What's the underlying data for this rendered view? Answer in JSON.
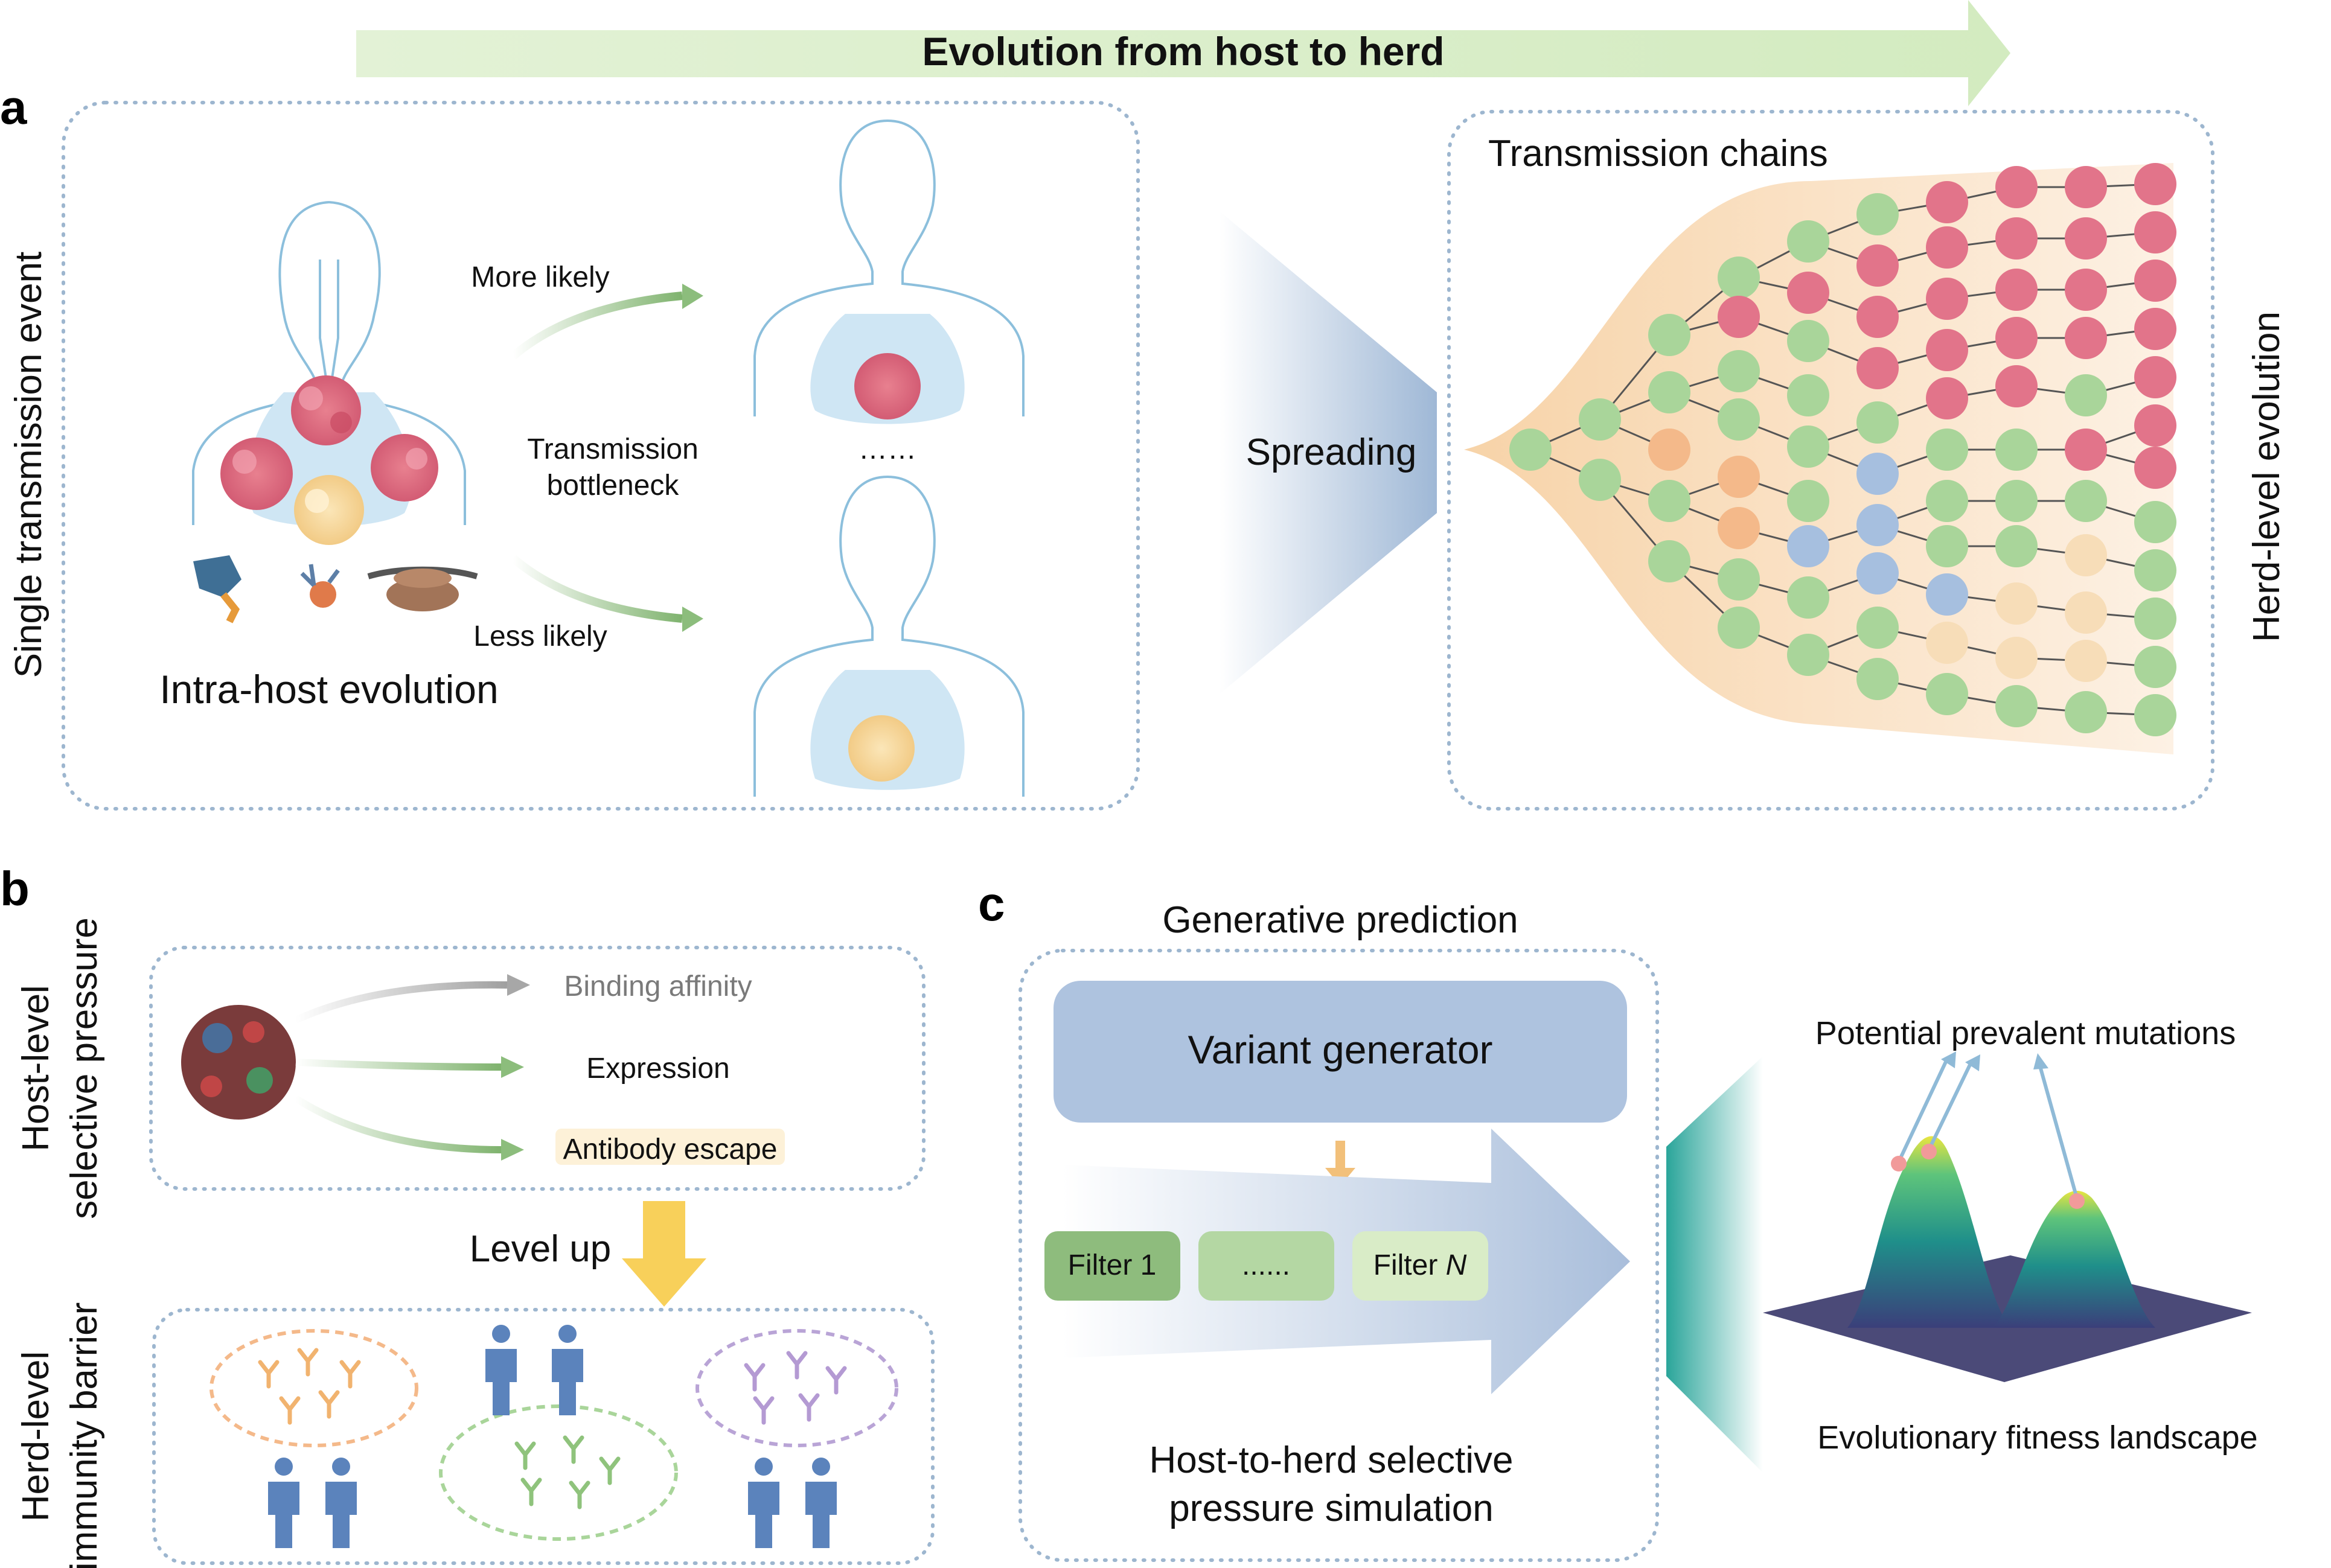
{
  "banner": {
    "title": "Evolution from host to herd"
  },
  "panel_labels": {
    "a": "a",
    "b": "b",
    "c": "c"
  },
  "panel_a": {
    "side_label": "Single transmission event",
    "more_likely": "More likely",
    "bottleneck_line1": "Transmission",
    "bottleneck_line2": "bottleneck",
    "ellipsis": "……",
    "less_likely": "Less likely",
    "intra_host": "Intra-host evolution",
    "spreading": "Spreading",
    "transmission_chains": "Transmission chains",
    "herd_side_label": "Herd-level evolution"
  },
  "panel_b": {
    "host_label_line1": "Host-level",
    "host_label_line2": "selective pressure",
    "binding_affinity": "Binding affinity",
    "expression": "Expression",
    "antibody_escape": "Antibody escape",
    "level_up": "Level up",
    "herd_label_line1": "Herd-level",
    "herd_label_line2": "immunity barrier"
  },
  "panel_c": {
    "generative_prediction": "Generative prediction",
    "variant_generator": "Variant generator",
    "filter_1": "Filter 1",
    "filter_dots": "......",
    "filter_n_prefix": "Filter ",
    "filter_n_var": "N",
    "simulation_line1": "Host-to-herd selective",
    "simulation_line2": "pressure simulation",
    "potential_mutations": "Potential prevalent mutations",
    "fitness_landscape": "Evolutionary fitness landscape"
  },
  "colors": {
    "green_node": "#a9d59a",
    "red_node": "#e2748a",
    "orange_node": "#f4b98a",
    "blue_node": "#a6bfdf",
    "cream_node": "#f7ddb8",
    "banner": "#d9edc9",
    "box_border": "#9db6cf"
  }
}
